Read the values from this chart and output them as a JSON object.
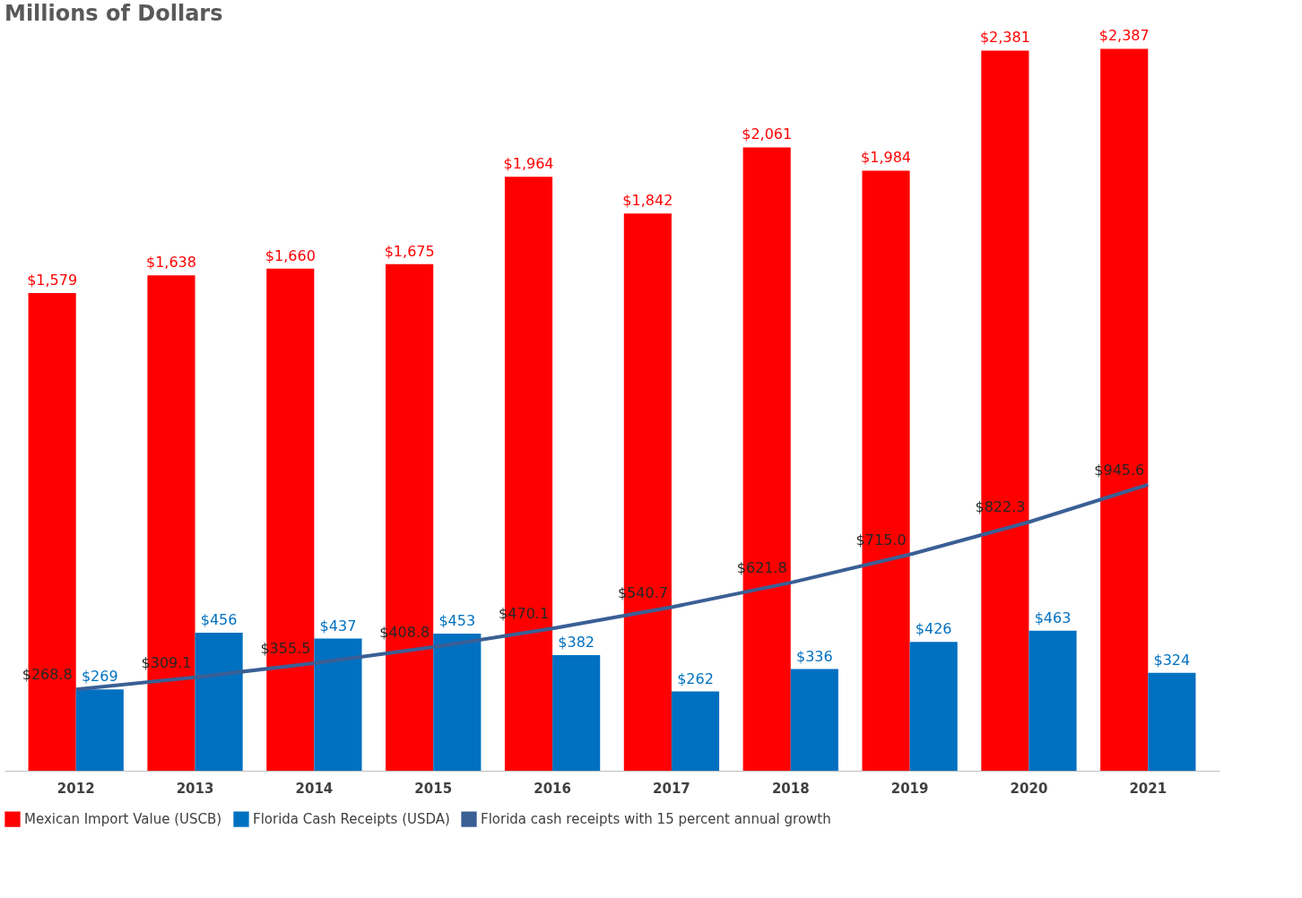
{
  "chart_data": {
    "type": "bar",
    "title": "Millions of Dollars",
    "categories": [
      "2012",
      "2013",
      "2014",
      "2015",
      "2016",
      "2017",
      "2018",
      "2019",
      "2020",
      "2021"
    ],
    "series": [
      {
        "name": "Mexican Import Value (USCB)",
        "color": "#ff0000",
        "values": [
          1579,
          1638,
          1660,
          1675,
          1964,
          1842,
          2061,
          1984,
          2381,
          2387
        ],
        "value_labels": [
          "$1,579",
          "$1,638",
          "$1,660",
          "$1,675",
          "$1,964",
          "$1,842",
          "$2,061",
          "$1,984",
          "$2,381",
          "$2,387"
        ]
      },
      {
        "name": "Florida Cash Receipts (USDA)",
        "color": "#0070c0",
        "values": [
          269,
          456,
          437,
          453,
          382,
          262,
          336,
          426,
          463,
          324
        ],
        "value_labels": [
          "$269",
          "$456",
          "$437",
          "$453",
          "$382",
          "$262",
          "$336",
          "$426",
          "$463",
          "$324"
        ]
      },
      {
        "name": "Florida cash receipts with 15 percent annual growth",
        "type": "line",
        "color": "#3a5f95",
        "values": [
          268.8,
          309.1,
          355.5,
          408.8,
          470.1,
          540.7,
          621.8,
          715.0,
          822.3,
          945.6
        ],
        "value_labels": [
          "$268.8",
          "$309.1",
          "$355.5",
          "$408.8",
          "$470.1",
          "$540.7",
          "$621.8",
          "$715.0",
          "$822.3",
          "$945.6"
        ]
      }
    ],
    "legend": "bottom",
    "grid": false
  }
}
